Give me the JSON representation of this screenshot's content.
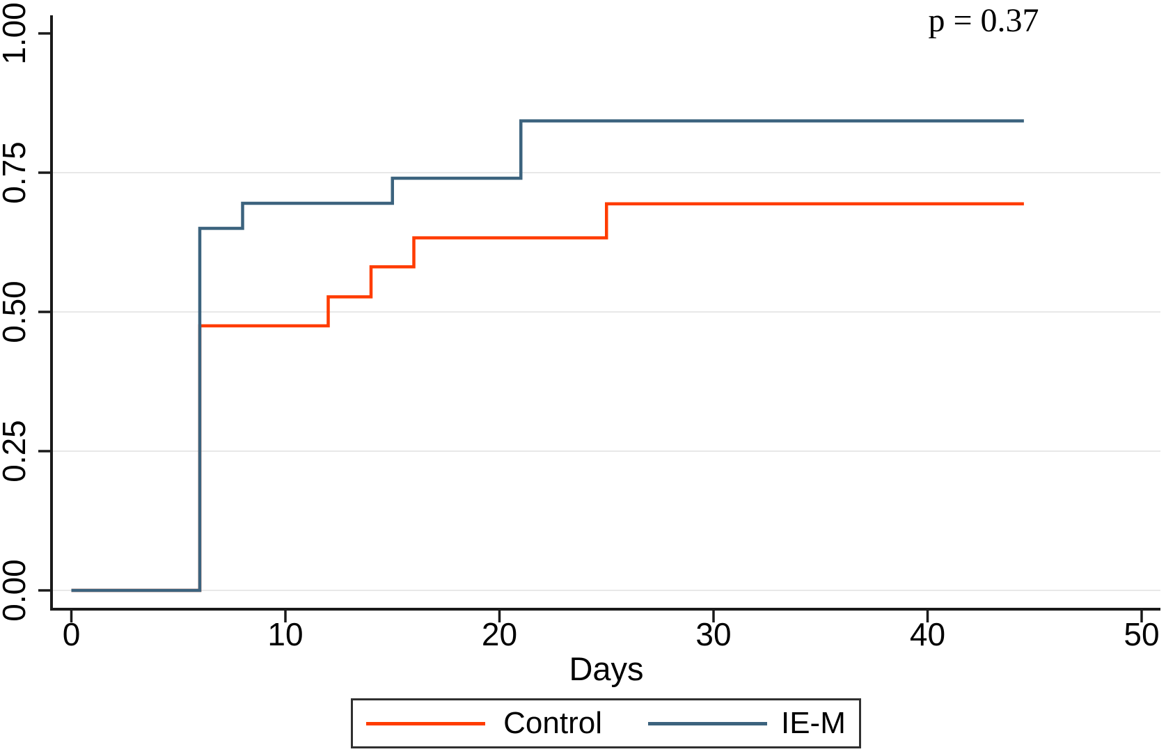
{
  "annotation": {
    "p_value_label": "p = 0.37"
  },
  "axes": {
    "x": {
      "label": "Days",
      "ticks": [
        {
          "label": "0",
          "value": 0
        },
        {
          "label": "10",
          "value": 10
        },
        {
          "label": "20",
          "value": 20
        },
        {
          "label": "30",
          "value": 30
        },
        {
          "label": "40",
          "value": 40
        },
        {
          "label": "50",
          "value": 50
        }
      ]
    },
    "y": {
      "label": "",
      "ticks": [
        {
          "label": "0.00",
          "value": 0
        },
        {
          "label": "0.25",
          "value": 0.25
        },
        {
          "label": "0.50",
          "value": 0.5
        },
        {
          "label": "0.75",
          "value": 0.75
        },
        {
          "label": "1.00",
          "value": 1.0
        }
      ]
    }
  },
  "legend": {
    "items": [
      {
        "label": "Control",
        "color": "#ff3c00"
      },
      {
        "label": "IE-M",
        "color": "#3c637e"
      }
    ]
  },
  "colors": {
    "control": "#ff3c00",
    "ie_m": "#3c637e",
    "gridline": "#e8e8e8",
    "axis": "#1a1a1a",
    "legend_border": "#303030"
  },
  "chart_data": {
    "type": "line",
    "subtype": "kaplan-meier-step",
    "title": "",
    "xlabel": "Days",
    "ylabel": "",
    "xlim": [
      0,
      51.8
    ],
    "ylim": [
      0,
      1.0
    ],
    "x_ticks": [
      0,
      10,
      20,
      30,
      40,
      50
    ],
    "y_ticks": [
      0,
      0.25,
      0.5,
      0.75,
      1.0
    ],
    "grid": "horizontal-only, at 0.00/0.25/0.50/0.75, none at 1.00",
    "legend_position": "bottom-center",
    "annotations": [
      {
        "text": "p = 0.37",
        "x": 43,
        "y": 0.99
      }
    ],
    "series": [
      {
        "name": "Control",
        "color": "#ff3c00",
        "step_points": [
          [
            0,
            0
          ],
          [
            6,
            0.475
          ],
          [
            12,
            0.527
          ],
          [
            14,
            0.581
          ],
          [
            16,
            0.633
          ],
          [
            25,
            0.694
          ]
        ],
        "end_x": 44.5
      },
      {
        "name": "IE-M",
        "color": "#3c637e",
        "step_points": [
          [
            0,
            0
          ],
          [
            6,
            0.65
          ],
          [
            8,
            0.695
          ],
          [
            15,
            0.74
          ],
          [
            21,
            0.843
          ]
        ],
        "end_x": 44.5
      }
    ]
  }
}
